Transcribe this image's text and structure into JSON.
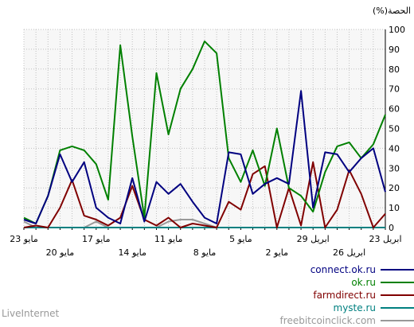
{
  "chart_data": {
    "type": "line",
    "ylabel": "(%)الحصة",
    "ylim": [
      0,
      100
    ],
    "yticks": [
      0,
      10,
      20,
      30,
      40,
      50,
      60,
      70,
      80,
      90,
      100
    ],
    "x_labels_top": [
      "23 مايو",
      "17 مايو",
      "11 مايو",
      "5 مايو",
      "29 ابريل",
      "23 ابريل"
    ],
    "x_labels_bottom": [
      "20 مايو",
      "14 مايو",
      "8 مايو",
      "2 مايو",
      "26 ابريل"
    ],
    "x_count": 31,
    "grid": true,
    "series": [
      {
        "name": "connect.ok.ru",
        "color": "#000080",
        "values": [
          4,
          2,
          16,
          37,
          23,
          33,
          10,
          5,
          2,
          25,
          3,
          23,
          17,
          22,
          13,
          5,
          2,
          38,
          37,
          17,
          22,
          25,
          22,
          69,
          10,
          38,
          37,
          28,
          35,
          40,
          18
        ]
      },
      {
        "name": "ok.ru",
        "color": "#008000",
        "values": [
          5,
          2,
          16,
          39,
          41,
          39,
          32,
          14,
          92,
          46,
          5,
          78,
          47,
          70,
          80,
          94,
          88,
          35,
          23,
          39,
          21,
          50,
          20,
          16,
          8,
          28,
          41,
          43,
          35,
          42,
          57
        ]
      },
      {
        "name": "farmdirect.ru",
        "color": "#800000",
        "values": [
          0,
          1,
          0,
          10,
          24,
          6,
          4,
          1,
          5,
          21,
          4,
          1,
          5,
          0,
          2,
          1,
          0,
          13,
          9,
          27,
          31,
          0,
          20,
          1,
          33,
          0,
          9,
          29,
          17,
          0,
          7
        ]
      },
      {
        "name": "myste.ru",
        "color": "#008080",
        "values": [
          0,
          0,
          0,
          0,
          0,
          0,
          0,
          0,
          0,
          0,
          0,
          0,
          0,
          0,
          0,
          0,
          0,
          0,
          0,
          0,
          0,
          0,
          0,
          0,
          0,
          0,
          0,
          0,
          0,
          0,
          0
        ]
      },
      {
        "name": "freebitcoinclick.com",
        "color": "#999999",
        "values": [
          3,
          0,
          0,
          0,
          0,
          0,
          3,
          0,
          0,
          0,
          0,
          0,
          3,
          4,
          4,
          2,
          0,
          0,
          0,
          0,
          0,
          0,
          0,
          0,
          0,
          0,
          0,
          0,
          0,
          0,
          0
        ]
      }
    ]
  },
  "footer": {
    "brand": "LiveInternet"
  }
}
